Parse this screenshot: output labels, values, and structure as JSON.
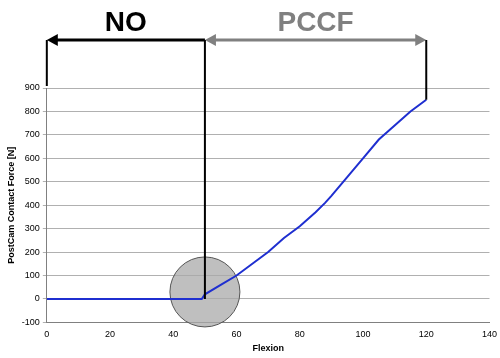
{
  "chart_data": {
    "type": "line",
    "x_label": "Flexion",
    "y_label": "PostCam Contact Force [N]",
    "x": [
      0,
      10,
      20,
      30,
      40,
      45,
      49,
      50,
      55,
      60,
      65,
      70,
      75,
      80,
      85,
      88,
      90,
      95,
      100,
      105,
      110,
      115,
      120
    ],
    "values": [
      0,
      0,
      0,
      0,
      0,
      0,
      0,
      20,
      60,
      100,
      150,
      200,
      260,
      310,
      370,
      410,
      440,
      520,
      600,
      680,
      740,
      800,
      850
    ],
    "color": "#1f2fd0",
    "xlim": [
      0,
      140
    ],
    "xticks": [
      0,
      20,
      40,
      60,
      80,
      100,
      120,
      140
    ],
    "ylim": [
      -100,
      900
    ],
    "yticks": [
      -100,
      0,
      100,
      200,
      300,
      400,
      500,
      600,
      700,
      800,
      900
    ],
    "grid": "y",
    "annotations": [
      {
        "text": "NO",
        "from": 0,
        "to": 50,
        "color": "#000000"
      },
      {
        "text": "PCCF",
        "from": 50,
        "to": 120,
        "color": "#808080"
      }
    ],
    "highlight": {
      "x": 50,
      "y": 30
    }
  }
}
